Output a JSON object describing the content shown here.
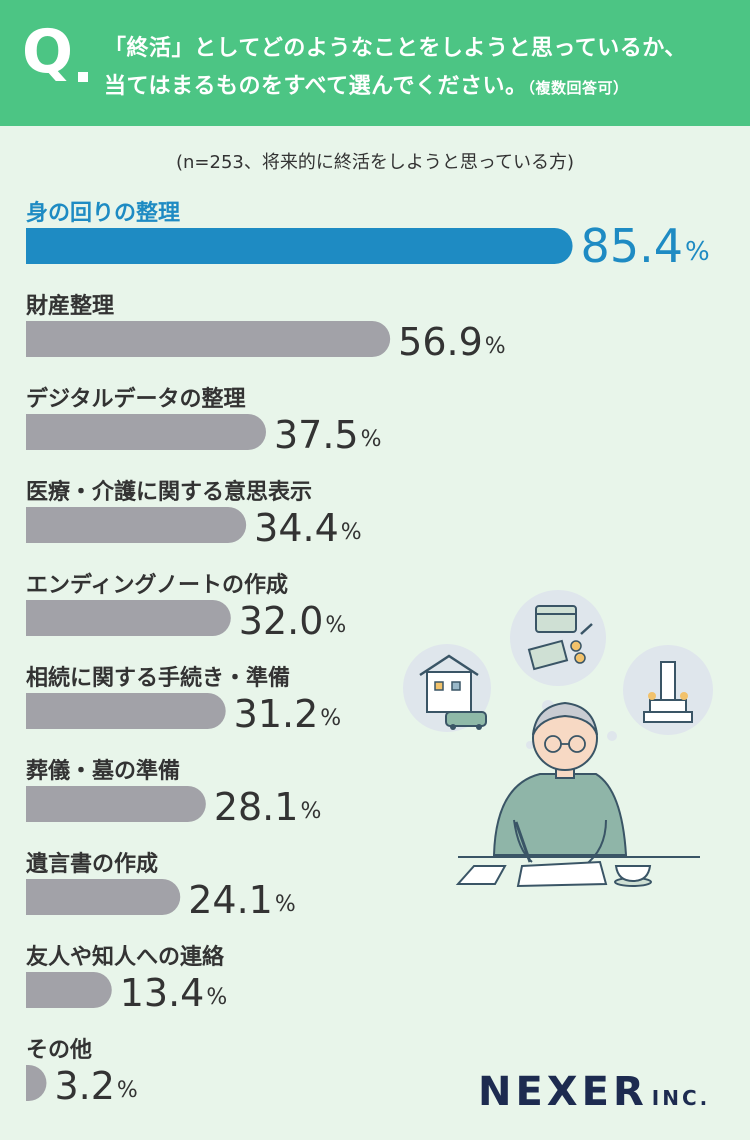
{
  "question": {
    "mark": "Q",
    "line1": "「終活」としてどのようなことをしようと思っているか、",
    "line2": "当てはまるものをすべて選んでください。",
    "note": "（複数回答可）"
  },
  "sample_note": "(n=253、将来的に終活をしようと思っている方)",
  "logo": {
    "main": "NEXER",
    "sub": "INC."
  },
  "colors": {
    "header": "#4cc584",
    "background": "#e8f5ea",
    "highlight": "#1e8bc3",
    "bar": "#a2a2a8",
    "text": "#333333"
  },
  "chart_data": {
    "type": "bar",
    "orientation": "horizontal",
    "unit": "%",
    "categories": [
      "身の回りの整理",
      "財産整理",
      "デジタルデータの整理",
      "医療・介護に関する意思表示",
      "エンディングノートの作成",
      "相続に関する手続き・準備",
      "葬儀・墓の準備",
      "遺言書の作成",
      "友人や知人への連絡",
      "その他"
    ],
    "values": [
      85.4,
      56.9,
      37.5,
      34.4,
      32.0,
      31.2,
      28.1,
      24.1,
      13.4,
      3.2
    ],
    "value_labels": [
      "85.4",
      "56.9",
      "37.5",
      "34.4",
      "32.0",
      "31.2",
      "28.1",
      "24.1",
      "13.4",
      "3.2"
    ],
    "highlight_index": 0
  }
}
